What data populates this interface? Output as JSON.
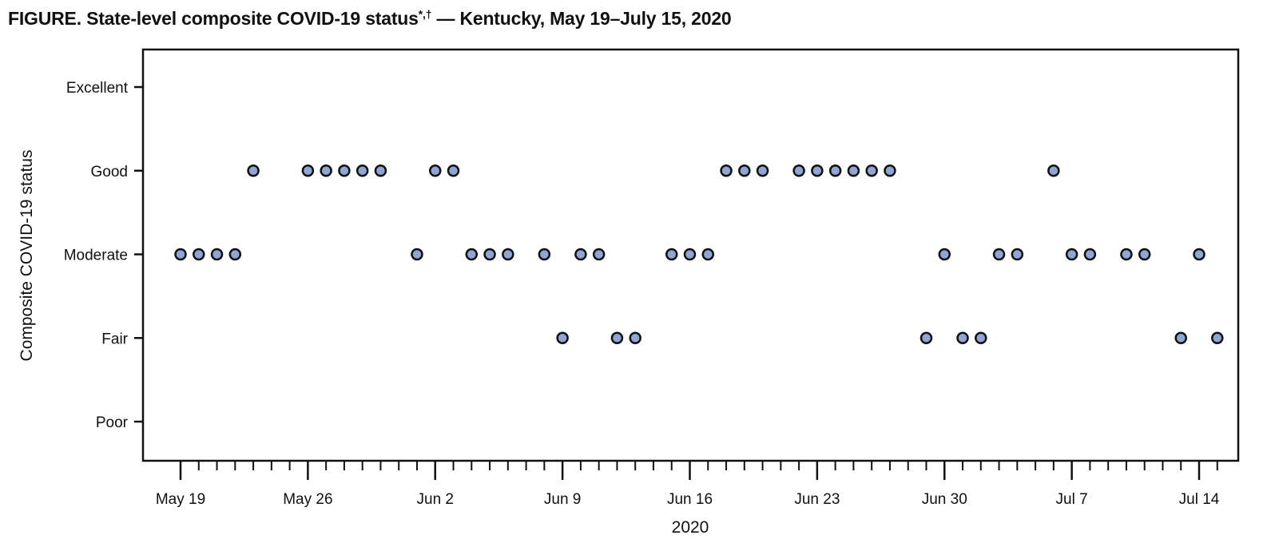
{
  "title": {
    "main": "FIGURE. State-level composite COVID-19 status",
    "marks": "*,†",
    "rest": " — Kentucky, May 19–July 15, 2020"
  },
  "colors": {
    "point_fill": "#8fa6d4",
    "point_stroke": "#111111",
    "axis": "#111111"
  },
  "chart_data": {
    "type": "scatter",
    "title": "State-level composite COVID-19 status*,† — Kentucky, May 19–July 15, 2020",
    "xlabel": "2020",
    "ylabel": "Composite COVID-19 status",
    "x_range": [
      "2020-05-17",
      "2020-07-16"
    ],
    "y_levels": [
      "Poor",
      "Fair",
      "Moderate",
      "Good",
      "Excellent"
    ],
    "x_tick_labels": [
      {
        "date": "2020-05-19",
        "label": "May 19"
      },
      {
        "date": "2020-05-26",
        "label": "May 26"
      },
      {
        "date": "2020-06-02",
        "label": "Jun 2"
      },
      {
        "date": "2020-06-09",
        "label": "Jun 9"
      },
      {
        "date": "2020-06-16",
        "label": "Jun 16"
      },
      {
        "date": "2020-06-23",
        "label": "Jun 23"
      },
      {
        "date": "2020-06-30",
        "label": "Jun 30"
      },
      {
        "date": "2020-07-07",
        "label": "Jul 7"
      },
      {
        "date": "2020-07-14",
        "label": "Jul 14"
      }
    ],
    "minor_ticks": "daily",
    "grid": false,
    "legend": "none",
    "points": [
      {
        "date": "2020-05-19",
        "status": "Moderate"
      },
      {
        "date": "2020-05-20",
        "status": "Moderate"
      },
      {
        "date": "2020-05-21",
        "status": "Moderate"
      },
      {
        "date": "2020-05-22",
        "status": "Moderate"
      },
      {
        "date": "2020-05-23",
        "status": "Good"
      },
      {
        "date": "2020-05-26",
        "status": "Good"
      },
      {
        "date": "2020-05-27",
        "status": "Good"
      },
      {
        "date": "2020-05-28",
        "status": "Good"
      },
      {
        "date": "2020-05-29",
        "status": "Good"
      },
      {
        "date": "2020-05-30",
        "status": "Good"
      },
      {
        "date": "2020-06-01",
        "status": "Moderate"
      },
      {
        "date": "2020-06-02",
        "status": "Good"
      },
      {
        "date": "2020-06-03",
        "status": "Good"
      },
      {
        "date": "2020-06-04",
        "status": "Moderate"
      },
      {
        "date": "2020-06-05",
        "status": "Moderate"
      },
      {
        "date": "2020-06-06",
        "status": "Moderate"
      },
      {
        "date": "2020-06-08",
        "status": "Moderate"
      },
      {
        "date": "2020-06-09",
        "status": "Fair"
      },
      {
        "date": "2020-06-10",
        "status": "Moderate"
      },
      {
        "date": "2020-06-11",
        "status": "Moderate"
      },
      {
        "date": "2020-06-12",
        "status": "Fair"
      },
      {
        "date": "2020-06-13",
        "status": "Fair"
      },
      {
        "date": "2020-06-15",
        "status": "Moderate"
      },
      {
        "date": "2020-06-16",
        "status": "Moderate"
      },
      {
        "date": "2020-06-17",
        "status": "Moderate"
      },
      {
        "date": "2020-06-18",
        "status": "Good"
      },
      {
        "date": "2020-06-19",
        "status": "Good"
      },
      {
        "date": "2020-06-20",
        "status": "Good"
      },
      {
        "date": "2020-06-22",
        "status": "Good"
      },
      {
        "date": "2020-06-23",
        "status": "Good"
      },
      {
        "date": "2020-06-24",
        "status": "Good"
      },
      {
        "date": "2020-06-25",
        "status": "Good"
      },
      {
        "date": "2020-06-26",
        "status": "Good"
      },
      {
        "date": "2020-06-27",
        "status": "Good"
      },
      {
        "date": "2020-06-29",
        "status": "Fair"
      },
      {
        "date": "2020-06-30",
        "status": "Moderate"
      },
      {
        "date": "2020-07-01",
        "status": "Fair"
      },
      {
        "date": "2020-07-02",
        "status": "Fair"
      },
      {
        "date": "2020-07-03",
        "status": "Moderate"
      },
      {
        "date": "2020-07-04",
        "status": "Moderate"
      },
      {
        "date": "2020-07-06",
        "status": "Good"
      },
      {
        "date": "2020-07-07",
        "status": "Moderate"
      },
      {
        "date": "2020-07-08",
        "status": "Moderate"
      },
      {
        "date": "2020-07-10",
        "status": "Moderate"
      },
      {
        "date": "2020-07-11",
        "status": "Moderate"
      },
      {
        "date": "2020-07-13",
        "status": "Fair"
      },
      {
        "date": "2020-07-14",
        "status": "Moderate"
      },
      {
        "date": "2020-07-15",
        "status": "Fair"
      }
    ]
  }
}
